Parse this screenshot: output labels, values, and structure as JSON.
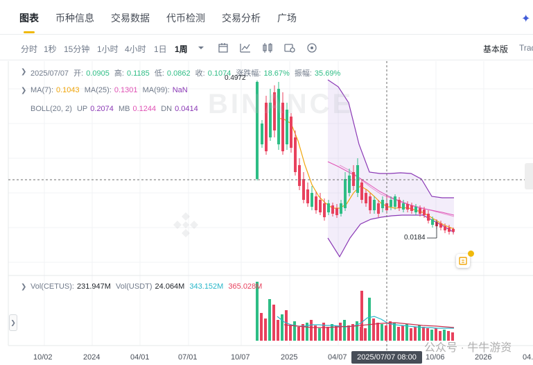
{
  "tabs": [
    "图表",
    "币种信息",
    "交易数据",
    "代币检测",
    "交易分析",
    "广场"
  ],
  "timeframes": [
    "分时",
    "1秒",
    "15分钟",
    "1小时",
    "4小时",
    "1日",
    "1周"
  ],
  "active_timeframe": "1周",
  "toolbar_icons": [
    "candle-style-icon",
    "indicator-icon",
    "compare-icon",
    "settings-icon",
    "fullscreen-icon"
  ],
  "views": {
    "basic": "基本版",
    "tradingview": "Trad"
  },
  "ohlc": {
    "date": "2025/07/07",
    "open_label": "开:",
    "open": "0.0905",
    "high_label": "高:",
    "high": "0.1185",
    "low_label": "低:",
    "low": "0.0862",
    "close_label": "收:",
    "close": "0.1074",
    "change_label": "涨跌幅:",
    "change": "18.67%",
    "amplitude_label": "振幅:",
    "amplitude": "35.69%"
  },
  "ma": {
    "ma7_label": "MA(7):",
    "ma7": "0.1043",
    "ma25_label": "MA(25):",
    "ma25": "0.1301",
    "ma99_label": "MA(99):",
    "ma99": "NaN"
  },
  "boll": {
    "label": "BOLL(20, 2)",
    "up_label": "UP",
    "up": "0.2074",
    "mb_label": "MB",
    "mb": "0.1244",
    "dn_label": "DN",
    "dn": "0.0414"
  },
  "vol": {
    "label1": "Vol(CETUS):",
    "value1": "231.947M",
    "label2": "Vol(USDT)",
    "value2": "24.064M",
    "ma_a": "343.152M",
    "ma_b": "365.028M"
  },
  "price_tags": {
    "high": "0.4972",
    "low": "0.0184"
  },
  "x_axis": [
    "10/02",
    "2024",
    "04/01",
    "07/01",
    "10/07",
    "2025",
    "04/07",
    "10/06",
    "2026",
    "04."
  ],
  "crosshair_label": "2025/07/07 08:00",
  "watermark": "BINANCE",
  "stamp": "公众号 · 牛牛游资",
  "colors": {
    "up": "#2ebd85",
    "down": "#e8415d",
    "accent": "#f0b90b",
    "boll": "#8a38b5",
    "ma7": "#f0a50a",
    "ma25": "#e052b5"
  }
}
